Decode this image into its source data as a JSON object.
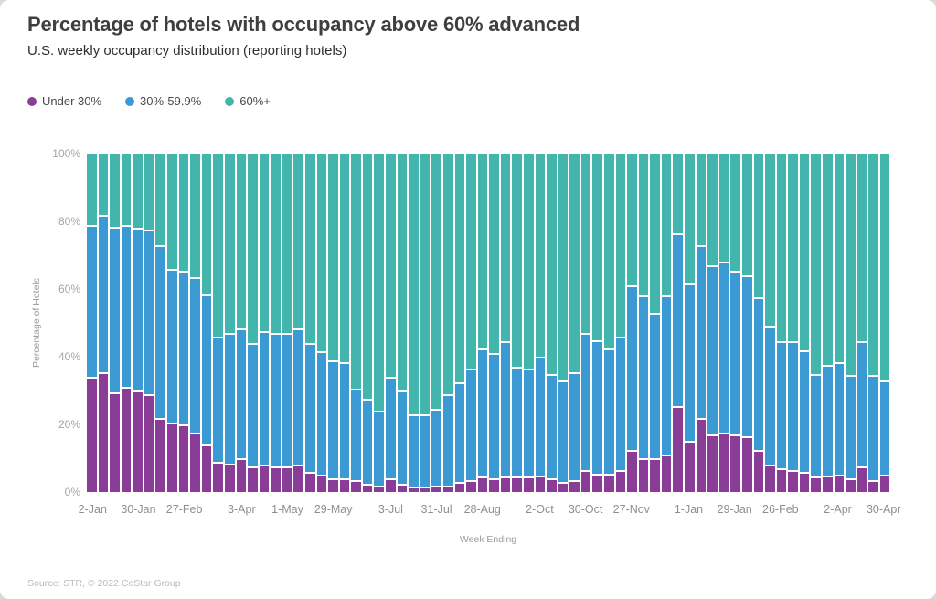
{
  "header": {
    "title": "Percentage of hotels with occupancy above 60% advanced",
    "subtitle": "U.S. weekly occupancy distribution (reporting hotels)"
  },
  "legend": {
    "items": [
      {
        "label": "Under 30%",
        "color": "#8a3d96"
      },
      {
        "label": "30%-59.9%",
        "color": "#3b99d4"
      },
      {
        "label": "60%+",
        "color": "#42b6ac"
      }
    ]
  },
  "chart_data": {
    "type": "bar",
    "stacked": true,
    "title": "Percentage of hotels with occupancy above 60% advanced",
    "subtitle": "U.S. weekly occupancy distribution (reporting hotels)",
    "xlabel": "Week Ending",
    "ylabel": "Percentage of Hotels",
    "ylim": [
      0,
      100
    ],
    "grid": false,
    "legend_position": "top",
    "y_ticks": [
      {
        "v": 0,
        "label": "0%"
      },
      {
        "v": 20,
        "label": "20%"
      },
      {
        "v": 40,
        "label": "40%"
      },
      {
        "v": 60,
        "label": "60%"
      },
      {
        "v": 80,
        "label": "80%"
      },
      {
        "v": 100,
        "label": "100%"
      }
    ],
    "categories": [
      "2-Jan",
      "9-Jan",
      "16-Jan",
      "23-Jan",
      "30-Jan",
      "6-Feb",
      "13-Feb",
      "20-Feb",
      "27-Feb",
      "6-Mar",
      "13-Mar",
      "20-Mar",
      "27-Mar",
      "3-Apr",
      "10-Apr",
      "17-Apr",
      "24-Apr",
      "1-May",
      "8-May",
      "15-May",
      "22-May",
      "29-May",
      "5-Jun",
      "12-Jun",
      "19-Jun",
      "26-Jun",
      "3-Jul",
      "10-Jul",
      "17-Jul",
      "24-Jul",
      "31-Jul",
      "7-Aug",
      "14-Aug",
      "21-Aug",
      "28-Aug",
      "4-Sep",
      "11-Sep",
      "18-Sep",
      "25-Sep",
      "2-Oct",
      "9-Oct",
      "16-Oct",
      "23-Oct",
      "30-Oct",
      "6-Nov",
      "13-Nov",
      "20-Nov",
      "27-Nov",
      "4-Dec",
      "11-Dec",
      "18-Dec",
      "25-Dec",
      "1-Jan",
      "8-Jan",
      "15-Jan",
      "22-Jan",
      "29-Jan",
      "5-Feb",
      "12-Feb",
      "19-Feb",
      "26-Feb",
      "5-Mar",
      "12-Mar",
      "19-Mar",
      "26-Mar",
      "2-Apr",
      "9-Apr",
      "16-Apr",
      "23-Apr",
      "30-Apr"
    ],
    "x_ticks": [
      {
        "i": 0,
        "label": "2-Jan"
      },
      {
        "i": 4,
        "label": "30-Jan"
      },
      {
        "i": 8,
        "label": "27-Feb"
      },
      {
        "i": 13,
        "label": "3-Apr"
      },
      {
        "i": 17,
        "label": "1-May"
      },
      {
        "i": 21,
        "label": "29-May"
      },
      {
        "i": 26,
        "label": "3-Jul"
      },
      {
        "i": 30,
        "label": "31-Jul"
      },
      {
        "i": 34,
        "label": "28-Aug"
      },
      {
        "i": 39,
        "label": "2-Oct"
      },
      {
        "i": 43,
        "label": "30-Oct"
      },
      {
        "i": 47,
        "label": "27-Nov"
      },
      {
        "i": 52,
        "label": "1-Jan"
      },
      {
        "i": 56,
        "label": "29-Jan"
      },
      {
        "i": 60,
        "label": "26-Feb"
      },
      {
        "i": 65,
        "label": "2-Apr"
      },
      {
        "i": 69,
        "label": "30-Apr"
      }
    ],
    "series": [
      {
        "name": "Under 30%",
        "color": "#8a3d96",
        "values": [
          34,
          35.5,
          29.5,
          31,
          30,
          29,
          22,
          20.5,
          20,
          17.5,
          14,
          9,
          8.5,
          10,
          7.5,
          8,
          7.5,
          7.5,
          8,
          6,
          5,
          4,
          4,
          3.5,
          2.5,
          2,
          4,
          2.5,
          1.5,
          1.5,
          2,
          2,
          3,
          3.5,
          4.5,
          4,
          4.5,
          4.5,
          4.5,
          5,
          4,
          3,
          3.5,
          6.5,
          5.5,
          5.5,
          6.5,
          12.5,
          10,
          10,
          11,
          25.5,
          15,
          22,
          17,
          17.5,
          17,
          16.5,
          12.5,
          8,
          7,
          6.5,
          6,
          4.5,
          5,
          5,
          4,
          7.5,
          3.5,
          5
        ]
      },
      {
        "name": "30%-59.9%",
        "color": "#3b99d4",
        "values": [
          45,
          46.5,
          49,
          48,
          48,
          48.5,
          51,
          45.5,
          45.5,
          46,
          44.5,
          37,
          38.5,
          38.5,
          36.5,
          39.5,
          39.5,
          39.5,
          40.5,
          38,
          36.5,
          35,
          34.5,
          27,
          25,
          22,
          30,
          27.5,
          21.5,
          21.5,
          22.5,
          27,
          29.5,
          33,
          38,
          37,
          40,
          32.5,
          32,
          35,
          31,
          30,
          32,
          40.5,
          39.5,
          37,
          39.5,
          48.5,
          48,
          43,
          47,
          51,
          46.5,
          51,
          50,
          50.5,
          48.5,
          47.5,
          45,
          41,
          37.5,
          38,
          36,
          30.5,
          32.5,
          33.5,
          30.5,
          37,
          31,
          28
        ]
      },
      {
        "name": "60%+",
        "color": "#42b6ac",
        "values": [
          21,
          18,
          21.5,
          21,
          22,
          22.5,
          27,
          34,
          34.5,
          36.5,
          41.5,
          54,
          53,
          51.5,
          56,
          52.5,
          53,
          53,
          51.5,
          56,
          58.5,
          61,
          61.5,
          69.5,
          72.5,
          76,
          66,
          70,
          77,
          77,
          75.5,
          71,
          67.5,
          63.5,
          57.5,
          59,
          55.5,
          63,
          63.5,
          60,
          65,
          67,
          64.5,
          53,
          55,
          57.5,
          54,
          39,
          42,
          47,
          42,
          23.5,
          38.5,
          27,
          33,
          32,
          34.5,
          36,
          42.5,
          51,
          55.5,
          55.5,
          58,
          65,
          62.5,
          61.5,
          65.5,
          55.5,
          65.5,
          67
        ]
      }
    ]
  },
  "footer": {
    "source": "Source: STR, © 2022 CoStar Group"
  }
}
